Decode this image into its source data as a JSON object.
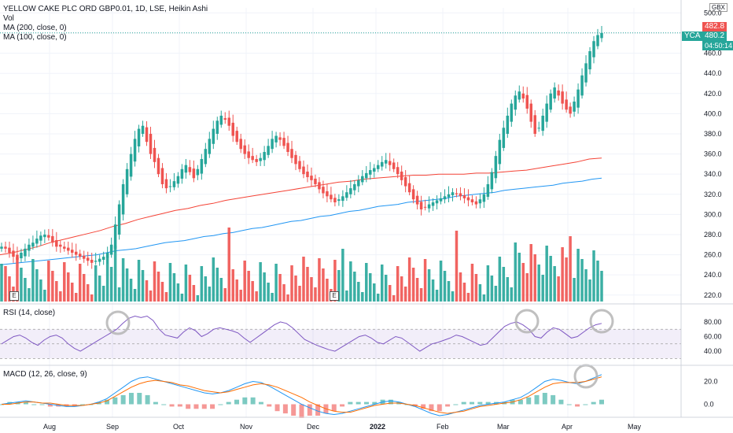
{
  "header": {
    "title": "YELLOW CAKE PLC ORD GBP0.01, 1D, LSE, Heikin Ashi",
    "vol_label": "Vol",
    "ma200_label": "MA (200, close, 0)",
    "ma100_label": "MA (100, close, 0)",
    "currency": "GBX"
  },
  "price_tags": {
    "last_high": "482.8",
    "symbol": "YCA",
    "last_price": "480.2",
    "countdown": "04:50:14"
  },
  "rsi": {
    "label": "RSI (14, close)",
    "ticks": [
      "80.00",
      "60.00",
      "40.00"
    ]
  },
  "macd": {
    "label": "MACD (12, 26, close, 9)",
    "ticks": [
      "20.0",
      "0.0"
    ]
  },
  "earnings_marker": "E",
  "chart_data": {
    "type": "candlestick",
    "price_axis": {
      "ticks": [
        500,
        480,
        460,
        440,
        420,
        400,
        380,
        360,
        340,
        320,
        300,
        280,
        260,
        240,
        220
      ],
      "range": [
        212,
        505
      ]
    },
    "x_axis": {
      "labels": [
        "Aug",
        "Sep",
        "Oct",
        "Nov",
        "Dec",
        "2022",
        "Feb",
        "Mar",
        "Apr",
        "May"
      ]
    },
    "close_series": [
      268,
      266,
      262,
      258,
      255,
      262,
      266,
      270,
      272,
      276,
      279,
      280,
      277,
      272,
      268,
      268,
      266,
      264,
      262,
      260,
      258,
      256,
      254,
      252,
      254,
      256,
      258,
      262,
      270,
      290,
      310,
      330,
      345,
      360,
      375,
      385,
      388,
      372,
      360,
      352,
      340,
      330,
      326,
      328,
      333,
      338,
      345,
      349,
      342,
      336,
      345,
      355,
      365,
      375,
      385,
      393,
      398,
      394,
      388,
      378,
      372,
      365,
      360,
      356,
      354,
      352,
      356,
      362,
      368,
      375,
      378,
      374,
      368,
      362,
      356,
      350,
      345,
      340,
      337,
      334,
      330,
      325,
      321,
      318,
      315,
      312,
      315,
      318,
      322,
      326,
      330,
      334,
      338,
      341,
      344,
      346,
      349,
      352,
      354,
      349,
      345,
      340,
      334,
      328,
      322,
      315,
      310,
      305,
      307,
      310,
      312,
      314,
      316,
      318,
      320,
      322,
      320,
      318,
      316,
      314,
      312,
      310,
      315,
      320,
      330,
      342,
      358,
      374,
      386,
      398,
      410,
      418,
      422,
      415,
      405,
      392,
      380,
      386,
      398,
      410,
      420,
      426,
      418,
      410,
      404,
      400,
      412,
      424,
      438,
      450,
      462,
      472,
      478,
      480
    ],
    "ma200": [
      250,
      251,
      252,
      253,
      254,
      255,
      256,
      257,
      258,
      259,
      260,
      262,
      264,
      265,
      266,
      268,
      270,
      272,
      273,
      274,
      276,
      278,
      279,
      281,
      282,
      284,
      286,
      287,
      289,
      291,
      293,
      294,
      296,
      298,
      299,
      301,
      303,
      304,
      306,
      308,
      309,
      310,
      312,
      313,
      314,
      315,
      316,
      318,
      319,
      320,
      321,
      322,
      324,
      325,
      326,
      327,
      328,
      329,
      331,
      332,
      333,
      335,
      336
    ],
    "ma100": [
      260,
      262,
      265,
      268,
      272,
      275,
      278,
      281,
      284,
      288,
      291,
      295,
      298,
      301,
      304,
      306,
      309,
      311,
      314,
      316,
      318,
      320,
      322,
      324,
      326,
      328,
      330,
      332,
      333,
      335,
      336,
      337,
      338,
      339,
      339,
      340,
      340,
      340,
      341,
      341,
      342,
      343,
      344,
      346,
      348,
      350,
      352,
      355,
      356
    ],
    "rsi_values": [
      50,
      55,
      60,
      62,
      58,
      52,
      48,
      55,
      60,
      62,
      58,
      50,
      44,
      40,
      45,
      50,
      55,
      60,
      65,
      70,
      78,
      85,
      88,
      86,
      88,
      82,
      70,
      62,
      60,
      58,
      66,
      72,
      68,
      60,
      64,
      70,
      72,
      70,
      68,
      65,
      58,
      52,
      58,
      64,
      70,
      76,
      80,
      78,
      72,
      64,
      56,
      52,
      48,
      45,
      42,
      40,
      45,
      50,
      55,
      60,
      62,
      58,
      52,
      50,
      55,
      60,
      58,
      52,
      46,
      40,
      45,
      50,
      52,
      55,
      58,
      62,
      60,
      56,
      52,
      48,
      50,
      58,
      66,
      74,
      78,
      80,
      76,
      70,
      60,
      58,
      66,
      72,
      70,
      64,
      58,
      60,
      66,
      72,
      76,
      78
    ],
    "macd_line": [
      0,
      1,
      2,
      3,
      2,
      1,
      0,
      -1,
      -2,
      -2,
      -1,
      0,
      2,
      5,
      10,
      15,
      20,
      23,
      24,
      22,
      20,
      18,
      16,
      14,
      12,
      10,
      9,
      10,
      12,
      15,
      18,
      20,
      19,
      16,
      12,
      8,
      4,
      0,
      -3,
      -6,
      -8,
      -9,
      -8,
      -6,
      -4,
      -2,
      0,
      2,
      3,
      2,
      0,
      -2,
      -5,
      -8,
      -10,
      -9,
      -7,
      -5,
      -3,
      -1,
      0,
      1,
      2,
      4,
      6,
      10,
      15,
      20,
      22,
      21,
      19,
      18,
      20,
      23,
      26
    ],
    "signal_line": [
      0,
      0,
      1,
      2,
      2,
      1,
      1,
      0,
      -1,
      -1,
      -1,
      0,
      1,
      3,
      7,
      11,
      15,
      18,
      20,
      21,
      20,
      19,
      17,
      16,
      14,
      12,
      11,
      10,
      11,
      13,
      15,
      17,
      18,
      17,
      15,
      12,
      9,
      6,
      2,
      -1,
      -4,
      -6,
      -7,
      -7,
      -5,
      -3,
      -1,
      0,
      1,
      1,
      0,
      -1,
      -3,
      -5,
      -7,
      -8,
      -7,
      -6,
      -4,
      -2,
      -1,
      0,
      1,
      2,
      4,
      7,
      11,
      15,
      18,
      19,
      19,
      19,
      20,
      22,
      24
    ]
  }
}
